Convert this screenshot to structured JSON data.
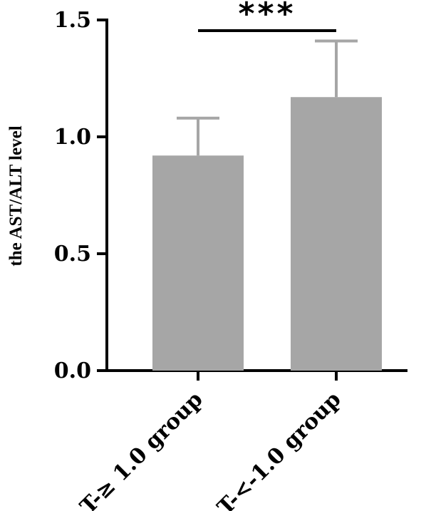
{
  "chart_data": {
    "type": "bar",
    "title": "",
    "xlabel": "",
    "ylabel": "the AST/ALT level",
    "ylim": [
      0,
      1.5
    ],
    "yticks": [
      "0.0",
      "0.5",
      "1.0",
      "1.5"
    ],
    "categories": [
      "T-≥ 1.0 group",
      "T-<-1.0 group"
    ],
    "values": [
      0.92,
      1.17
    ],
    "error_upper": [
      1.08,
      1.41
    ],
    "significance": {
      "between": [
        0,
        1
      ],
      "label": "***"
    },
    "grid": false,
    "colors": {
      "bar": "#a6a6a6",
      "axis": "#000000"
    }
  }
}
